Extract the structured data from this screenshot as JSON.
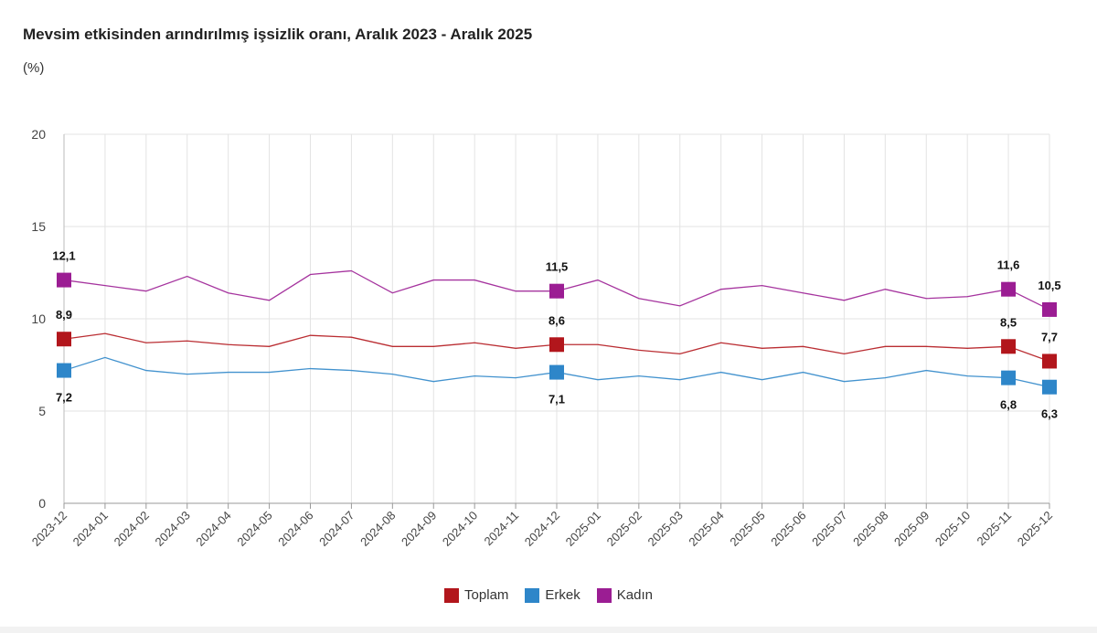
{
  "chart_data": {
    "type": "line",
    "title": "Mevsim etkisinden arındırılmış işsizlik oranı, Aralık 2023 - Aralık 2025",
    "ylabel": "(%)",
    "xlabel": "",
    "ylim": [
      0,
      20
    ],
    "yticks": [
      "0",
      "5",
      "10",
      "15",
      "20"
    ],
    "grid": true,
    "legend_position": "bottom",
    "categories": [
      "2023-12",
      "2024-01",
      "2024-02",
      "2024-03",
      "2024-04",
      "2024-05",
      "2024-06",
      "2024-07",
      "2024-08",
      "2024-09",
      "2024-10",
      "2024-11",
      "2024-12",
      "2025-01",
      "2025-02",
      "2025-03",
      "2025-04",
      "2025-05",
      "2025-06",
      "2025-07",
      "2025-08",
      "2025-09",
      "2025-10",
      "2025-11",
      "2025-12"
    ],
    "labeled_points": [
      0,
      12,
      23,
      24
    ],
    "series": [
      {
        "name": "Toplam",
        "color": "#b2161c",
        "label_position": "above",
        "values": [
          8.9,
          9.2,
          8.7,
          8.8,
          8.6,
          8.5,
          9.1,
          9.0,
          8.5,
          8.5,
          8.7,
          8.4,
          8.6,
          8.6,
          8.3,
          8.1,
          8.7,
          8.4,
          8.5,
          8.1,
          8.5,
          8.5,
          8.4,
          8.5,
          7.7
        ],
        "labels": [
          "8,9",
          "8,6",
          "8,5",
          "7,7"
        ]
      },
      {
        "name": "Erkek",
        "color": "#2e86c9",
        "label_position": "below",
        "values": [
          7.2,
          7.9,
          7.2,
          7.0,
          7.1,
          7.1,
          7.3,
          7.2,
          7.0,
          6.6,
          6.9,
          6.8,
          7.1,
          6.7,
          6.9,
          6.7,
          7.1,
          6.7,
          7.1,
          6.6,
          6.8,
          7.2,
          6.9,
          6.8,
          6.3
        ],
        "labels": [
          "7,2",
          "7,1",
          "6,8",
          "6,3"
        ]
      },
      {
        "name": "Kadın",
        "color": "#9b1d93",
        "label_position": "above",
        "values": [
          12.1,
          11.8,
          11.5,
          12.3,
          11.4,
          11.0,
          12.4,
          12.6,
          11.4,
          12.1,
          12.1,
          11.5,
          11.5,
          12.1,
          11.1,
          10.7,
          11.6,
          11.8,
          11.4,
          11.0,
          11.6,
          11.1,
          11.2,
          11.6,
          10.5
        ],
        "labels": [
          "12,1",
          "11,5",
          "11,6",
          "10,5"
        ]
      }
    ]
  }
}
